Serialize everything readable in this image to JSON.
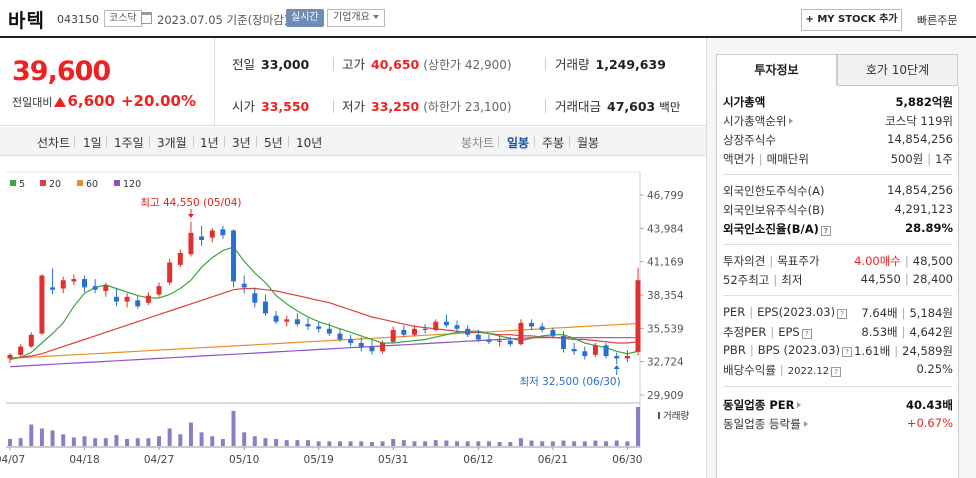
{
  "header": {
    "stock_name": "바텍",
    "stock_code": "043150",
    "market": "코스닥",
    "date": "2023.07.05 기준(장마감)",
    "realtime": "실시간",
    "company_overview": "기업개요",
    "mystock_add": "+ MY STOCK 추가",
    "quick_order": "빠른주문"
  },
  "price": {
    "current": "39,600",
    "change_label": "전일대비",
    "change": "6,600",
    "change_pct": "+20.00%",
    "up_color": "#e22222",
    "prev_close_label": "전일",
    "prev_close": "33,000",
    "high_label": "고가",
    "high": "40,650",
    "upper_limit": "(상한가 42,900)",
    "volume_label": "거래량",
    "volume": "1,249,639",
    "open_label": "시가",
    "open": "33,550",
    "low_label": "저가",
    "low": "33,250",
    "lower_limit": "(하한가 23,100)",
    "amount_label": "거래대금",
    "amount": "47,603",
    "amount_unit": "백만"
  },
  "toolbar": {
    "line_chart": "선차트",
    "periods": [
      "1일",
      "1주일",
      "3개월",
      "1년",
      "3년",
      "5년",
      "10년"
    ],
    "candle_chart": "봉차트",
    "candle_periods": [
      "일봉",
      "주봉",
      "월봉"
    ],
    "active_candle": "일봉"
  },
  "chart_data": {
    "type": "candlestick",
    "legend": [
      {
        "name": "5",
        "color": "#3aa53a"
      },
      {
        "name": "20",
        "color": "#e04040"
      },
      {
        "name": "60",
        "color": "#e8902a"
      },
      {
        "name": "120",
        "color": "#9050c0"
      }
    ],
    "y_ticks": [
      46799,
      43984,
      41169,
      38354,
      35539,
      32724,
      29909
    ],
    "ylim": [
      29909,
      46799
    ],
    "x_labels": [
      "04/07",
      "04/18",
      "04/27",
      "05/10",
      "05/19",
      "05/31",
      "06/12",
      "06/21",
      "06/30"
    ],
    "x_label_index": [
      0,
      7,
      14,
      22,
      29,
      36,
      44,
      51,
      58
    ],
    "annotations": {
      "high": "최고 44,550 (05/04)",
      "low": "최저 32,500 (06/30)"
    },
    "volume_label": "거래량",
    "candles": [
      [
        33000,
        33450,
        32600,
        33300,
        0.18
      ],
      [
        33300,
        34200,
        33100,
        34000,
        0.2
      ],
      [
        34000,
        35200,
        33900,
        35000,
        0.55
      ],
      [
        35100,
        40100,
        35000,
        40000,
        0.45
      ],
      [
        39000,
        40600,
        38400,
        38800,
        0.4
      ],
      [
        38900,
        39900,
        38500,
        39600,
        0.3
      ],
      [
        39500,
        40100,
        39200,
        39700,
        0.22
      ],
      [
        39700,
        40000,
        38600,
        39000,
        0.25
      ],
      [
        39100,
        39700,
        38500,
        38800,
        0.2
      ],
      [
        38700,
        39400,
        38200,
        39200,
        0.2
      ],
      [
        38200,
        38900,
        37400,
        37800,
        0.28
      ],
      [
        37800,
        38500,
        37300,
        38200,
        0.18
      ],
      [
        37900,
        38300,
        37200,
        37400,
        0.2
      ],
      [
        37700,
        38600,
        37500,
        38300,
        0.2
      ],
      [
        38400,
        39400,
        38200,
        39100,
        0.25
      ],
      [
        39400,
        41400,
        39200,
        41100,
        0.45
      ],
      [
        40900,
        42200,
        40700,
        41900,
        0.3
      ],
      [
        41800,
        44550,
        41600,
        43600,
        0.6
      ],
      [
        43300,
        44200,
        42500,
        43000,
        0.35
      ],
      [
        43200,
        44000,
        42800,
        43800,
        0.25
      ],
      [
        43900,
        44200,
        43100,
        43400,
        0.18
      ],
      [
        43800,
        43900,
        39000,
        39500,
        0.9
      ],
      [
        39300,
        40000,
        38500,
        39000,
        0.35
      ],
      [
        38500,
        39000,
        37300,
        37700,
        0.25
      ],
      [
        37800,
        38400,
        36600,
        36800,
        0.2
      ],
      [
        36600,
        37000,
        35900,
        36100,
        0.18
      ],
      [
        36100,
        36600,
        35700,
        36300,
        0.15
      ],
      [
        36300,
        36800,
        35700,
        35900,
        0.15
      ],
      [
        35900,
        36400,
        35400,
        35700,
        0.15
      ],
      [
        35700,
        36100,
        35200,
        35500,
        0.12
      ],
      [
        35500,
        36000,
        34900,
        35100,
        0.12
      ],
      [
        35100,
        35500,
        34400,
        34600,
        0.12
      ],
      [
        34600,
        35000,
        34000,
        34300,
        0.12
      ],
      [
        34300,
        34800,
        33600,
        34000,
        0.12
      ],
      [
        34000,
        34500,
        33300,
        33600,
        0.1
      ],
      [
        33600,
        34500,
        33400,
        34300,
        0.12
      ],
      [
        34400,
        35700,
        34300,
        35400,
        0.18
      ],
      [
        35400,
        35800,
        34800,
        35000,
        0.15
      ],
      [
        35000,
        35800,
        34900,
        35500,
        0.12
      ],
      [
        35500,
        35900,
        35100,
        35400,
        0.12
      ],
      [
        35400,
        36300,
        35300,
        36100,
        0.15
      ],
      [
        36100,
        36700,
        35600,
        35800,
        0.14
      ],
      [
        35800,
        36200,
        35200,
        35500,
        0.12
      ],
      [
        35500,
        35800,
        34800,
        35000,
        0.12
      ],
      [
        35000,
        35400,
        34400,
        34600,
        0.12
      ],
      [
        34600,
        35000,
        34200,
        34400,
        0.12
      ],
      [
        34400,
        34900,
        34000,
        34500,
        0.1
      ],
      [
        34500,
        34800,
        34000,
        34200,
        0.1
      ],
      [
        34200,
        36300,
        34100,
        36000,
        0.2
      ],
      [
        36000,
        36300,
        35400,
        35700,
        0.14
      ],
      [
        35700,
        36000,
        35200,
        35400,
        0.12
      ],
      [
        35400,
        35600,
        34700,
        34900,
        0.12
      ],
      [
        34900,
        35300,
        33500,
        33800,
        0.14
      ],
      [
        33800,
        34300,
        33300,
        33600,
        0.12
      ],
      [
        33600,
        34000,
        32900,
        33200,
        0.12
      ],
      [
        33300,
        34300,
        33100,
        34100,
        0.14
      ],
      [
        34100,
        34300,
        33000,
        33200,
        0.12
      ],
      [
        33200,
        33500,
        32500,
        33000,
        0.14
      ],
      [
        33000,
        33700,
        32700,
        33200,
        0.12
      ],
      [
        33550,
        40650,
        33250,
        39600,
        1.0
      ]
    ],
    "ma5": [
      32900,
      33100,
      33500,
      34300,
      35100,
      36000,
      37400,
      38500,
      39000,
      39200,
      38900,
      38600,
      38300,
      38100,
      38100,
      38400,
      38900,
      39600,
      40700,
      41500,
      42100,
      42400,
      41200,
      40200,
      39400,
      38300,
      37600,
      37000,
      36500,
      36100,
      35800,
      35500,
      35200,
      34900,
      34600,
      34300,
      34300,
      34400,
      34500,
      34600,
      34800,
      35000,
      35200,
      35300,
      35300,
      35100,
      34900,
      34700,
      34500,
      34700,
      34900,
      35000,
      35000,
      34700,
      34300,
      34100,
      33900,
      33600,
      33400,
      33600
    ],
    "ma20": [
      33000,
      33100,
      33200,
      33400,
      33700,
      34000,
      34300,
      34600,
      34900,
      35200,
      35500,
      35800,
      36100,
      36400,
      36700,
      37000,
      37300,
      37600,
      37900,
      38200,
      38500,
      38800,
      38900,
      38900,
      38800,
      38700,
      38500,
      38300,
      38100,
      37900,
      37700,
      37400,
      37100,
      36800,
      36500,
      36300,
      36100,
      35900,
      35700,
      35600,
      35500,
      35400,
      35300,
      35200,
      35200,
      35100,
      35000,
      35000,
      34900,
      34900,
      34800,
      34800,
      34700,
      34600,
      34600,
      34500,
      34400,
      34300,
      34300,
      34400
    ],
    "ma60": [
      33000,
      33050,
      33100,
      33150,
      33200,
      33250,
      33300,
      33350,
      33400,
      33450,
      33500,
      33550,
      33600,
      33650,
      33700,
      33750,
      33800,
      33850,
      33900,
      33950,
      34000,
      34050,
      34100,
      34150,
      34200,
      34250,
      34300,
      34350,
      34400,
      34450,
      34500,
      34550,
      34600,
      34650,
      34700,
      34750,
      34800,
      34850,
      34900,
      34950,
      35000,
      35050,
      35100,
      35150,
      35200,
      35250,
      35300,
      35350,
      35400,
      35450,
      35500,
      35550,
      35600,
      35650,
      35700,
      35750,
      35800,
      35850,
      35900,
      35950
    ],
    "ma120": [
      32300,
      32350,
      32400,
      32450,
      32500,
      32550,
      32600,
      32650,
      32700,
      32750,
      32800,
      32850,
      32900,
      32950,
      33000,
      33050,
      33100,
      33150,
      33200,
      33250,
      33300,
      33350,
      33400,
      33450,
      33500,
      33550,
      33600,
      33650,
      33700,
      33750,
      33800,
      33850,
      33900,
      33950,
      34000,
      34050,
      34100,
      34150,
      34200,
      34250,
      34300,
      34350,
      34400,
      34450,
      34500,
      34550,
      34600,
      34650,
      34700,
      34750,
      34750,
      34750,
      34750,
      34750,
      34750,
      34750,
      34750,
      34750,
      34750,
      34750
    ]
  },
  "right_panel": {
    "tabs": [
      "투자정보",
      "호가 10단계"
    ],
    "market_cap_label": "시가총액",
    "market_cap": "5,882억원",
    "market_cap_rank_label": "시가총액순위",
    "market_cap_rank": "코스닥 119위",
    "listed_shares_label": "상장주식수",
    "listed_shares": "14,854,256",
    "par_label": "액면가",
    "trade_unit_label": "매매단위",
    "par": "500원",
    "trade_unit": "1주",
    "foreign_limit_label": "외국인한도주식수(A)",
    "foreign_limit": "14,854,256",
    "foreign_hold_label": "외국인보유주식수(B)",
    "foreign_hold": "4,291,123",
    "foreign_ratio_label": "외국인소진율(B/A)",
    "foreign_ratio": "28.89%",
    "opinion_label": "투자의견",
    "target_label": "목표주가",
    "opinion": "4.00매수",
    "target": "48,500",
    "w52_label": "52주최고",
    "w52_low_label": "최저",
    "w52_high": "44,550",
    "w52_low": "28,400",
    "per_label": "PER",
    "eps_label": "EPS(2023.03)",
    "per": "7.64배",
    "eps": "5,184원",
    "est_per_label": "추정PER",
    "est_eps_label": "EPS",
    "est_per": "8.53배",
    "est_eps": "4,642원",
    "pbr_label": "PBR",
    "bps_label": "BPS (2023.03)",
    "pbr": "1.61배",
    "bps": "24,589원",
    "dividend_label": "배당수익률",
    "dividend_date": "2022.12",
    "dividend": "0.25%",
    "industry_per_label": "동일업종 PER",
    "industry_per": "40.43배",
    "industry_change_label": "동일업종 등락률",
    "industry_change": "+0.67%"
  }
}
